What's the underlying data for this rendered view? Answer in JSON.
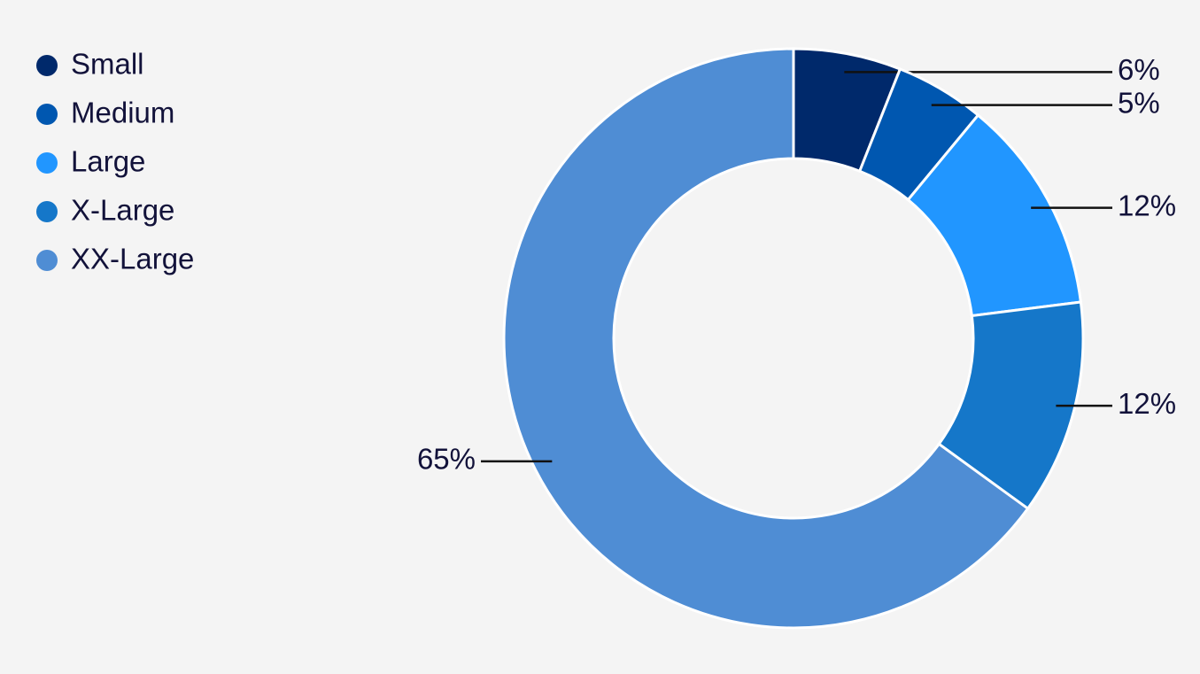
{
  "chart_data": {
    "type": "donut",
    "categories": [
      "Small",
      "Medium",
      "Large",
      "X-Large",
      "XX-Large"
    ],
    "values": [
      6,
      5,
      12,
      12,
      65
    ],
    "value_labels": [
      "6%",
      "5%",
      "12%",
      "12%",
      "65%"
    ],
    "colors": [
      "#00296b",
      "#0057b0",
      "#2196ff",
      "#1577c9",
      "#4f8dd4"
    ],
    "legend": "top-left"
  }
}
